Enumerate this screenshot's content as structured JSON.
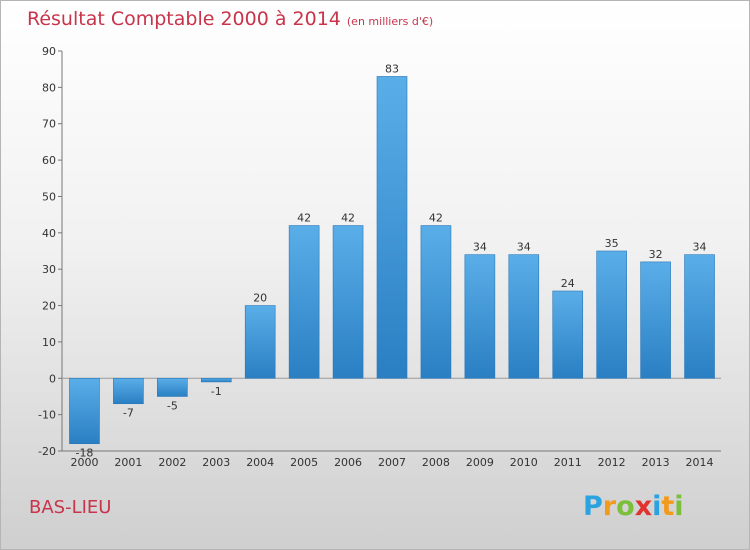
{
  "header": {
    "title": "Résultat Comptable 2000 à 2014",
    "subtitle": "(en milliers d'€)"
  },
  "footer": {
    "commune": "BAS-LIEU",
    "logo_letters": [
      "P",
      "r",
      "o",
      "x",
      "i",
      "t",
      "i"
    ]
  },
  "colors": {
    "title": "#c8344b",
    "bar_top": "#5aaee8",
    "bar_bottom": "#2a7fc3"
  },
  "chart_data": {
    "type": "bar",
    "title": "Résultat Comptable 2000 à 2014",
    "subtitle": "(en milliers d'€)",
    "xlabel": "",
    "ylabel": "",
    "categories": [
      "2000",
      "2001",
      "2002",
      "2003",
      "2004",
      "2005",
      "2006",
      "2007",
      "2008",
      "2009",
      "2010",
      "2011",
      "2012",
      "2013",
      "2014"
    ],
    "values": [
      -18,
      -7,
      -5,
      -1,
      20,
      42,
      42,
      83,
      42,
      34,
      34,
      24,
      35,
      32,
      34
    ],
    "ylim": [
      -20,
      90
    ],
    "yticks": [
      -20,
      -10,
      0,
      10,
      20,
      30,
      40,
      50,
      60,
      70,
      80,
      90
    ],
    "grid": false,
    "legend": "none"
  }
}
